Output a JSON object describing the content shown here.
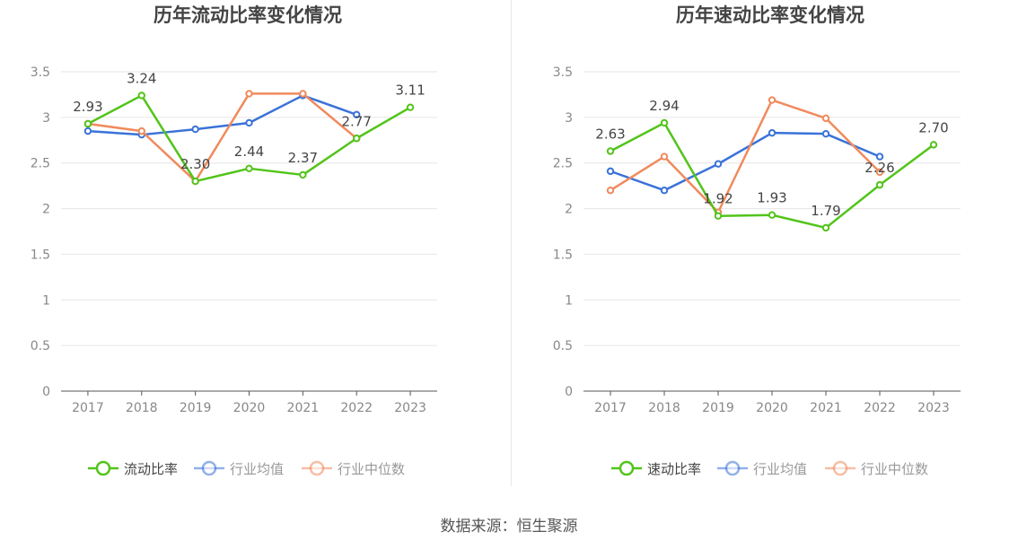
{
  "source_text": "数据来源：恒生聚源",
  "legend_names": [
    "行业均值",
    "行业中位数"
  ],
  "colors": {
    "main": "#52c41a",
    "avg": "#3a72d8",
    "median": "#f08a5d"
  },
  "chart_data": [
    {
      "type": "line",
      "title": "历年流动比率变化情况",
      "categories": [
        "2017",
        "2018",
        "2019",
        "2020",
        "2021",
        "2022",
        "2023"
      ],
      "ylim": [
        0,
        3.5
      ],
      "yticks": [
        "0",
        "0.5",
        "1",
        "1.5",
        "2",
        "2.5",
        "3",
        "3.5"
      ],
      "legend_position": "bottom",
      "series": [
        {
          "name": "流动比率",
          "values": [
            2.93,
            3.24,
            2.3,
            2.44,
            2.37,
            2.77,
            3.11
          ],
          "labels": [
            "2.93",
            "3.24",
            "2.30",
            "2.44",
            "2.37",
            "2.77",
            "3.11"
          ]
        },
        {
          "name": "行业均值",
          "values": [
            2.85,
            2.81,
            2.87,
            2.94,
            3.24,
            3.03,
            null
          ]
        },
        {
          "name": "行业中位数",
          "values": [
            2.93,
            2.85,
            2.3,
            3.26,
            3.26,
            2.77,
            null
          ]
        }
      ]
    },
    {
      "type": "line",
      "title": "历年速动比率变化情况",
      "categories": [
        "2017",
        "2018",
        "2019",
        "2020",
        "2021",
        "2022",
        "2023"
      ],
      "ylim": [
        0,
        3.5
      ],
      "yticks": [
        "0",
        "0.5",
        "1",
        "1.5",
        "2",
        "2.5",
        "3",
        "3.5"
      ],
      "legend_position": "bottom",
      "series": [
        {
          "name": "速动比率",
          "values": [
            2.63,
            2.94,
            1.92,
            1.93,
            1.79,
            2.26,
            2.7
          ],
          "labels": [
            "2.63",
            "2.94",
            "1.92",
            "1.93",
            "1.79",
            "2.26",
            "2.70"
          ]
        },
        {
          "name": "行业均值",
          "values": [
            2.41,
            2.2,
            2.49,
            2.83,
            2.82,
            2.57,
            null
          ]
        },
        {
          "name": "行业中位数",
          "values": [
            2.2,
            2.57,
            1.96,
            3.19,
            2.99,
            2.4,
            null
          ]
        }
      ]
    }
  ]
}
